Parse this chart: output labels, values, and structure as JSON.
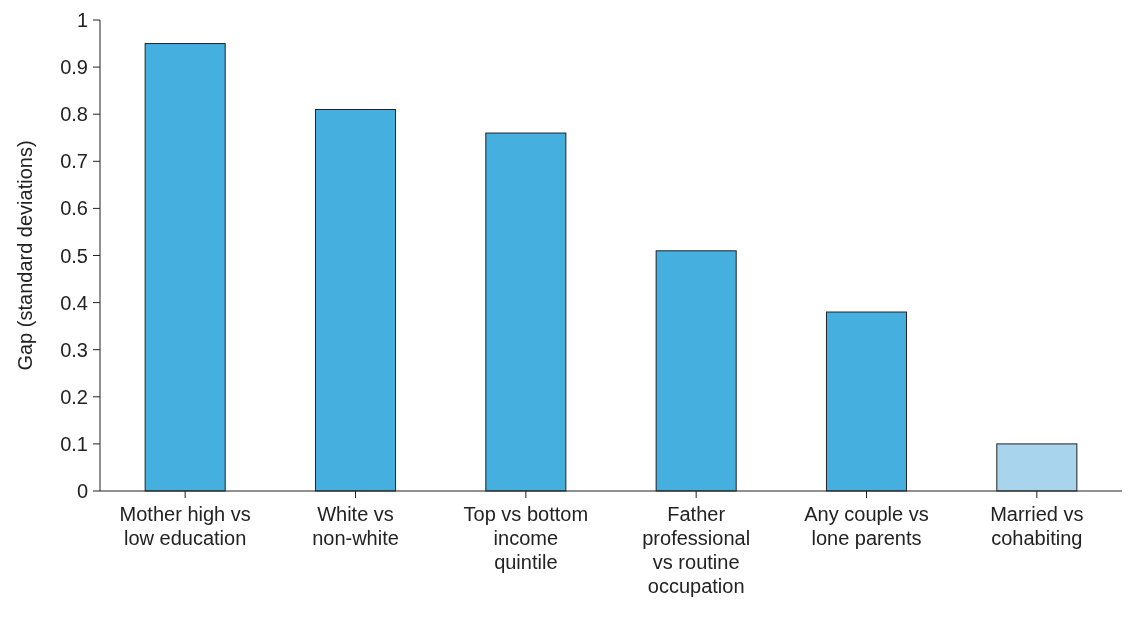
{
  "chart_data": {
    "type": "bar",
    "ylabel": "Gap (standard deviations)",
    "categories": [
      "Mother high vs low education",
      "White vs non-white",
      "Top vs bottom income quintile",
      "Father professional vs routine occupation",
      "Any couple vs lone parents",
      "Married vs cohabiting"
    ],
    "values": [
      0.95,
      0.81,
      0.76,
      0.51,
      0.38,
      0.1
    ],
    "colors": [
      "#45b0e0",
      "#45b0e0",
      "#45b0e0",
      "#45b0e0",
      "#45b0e0",
      "#a8d4ee"
    ],
    "ylim": [
      0,
      1
    ],
    "yticks": [
      0,
      0.1,
      0.2,
      0.3,
      0.4,
      0.5,
      0.6,
      0.7,
      0.8,
      0.9,
      1
    ],
    "grid": false
  }
}
